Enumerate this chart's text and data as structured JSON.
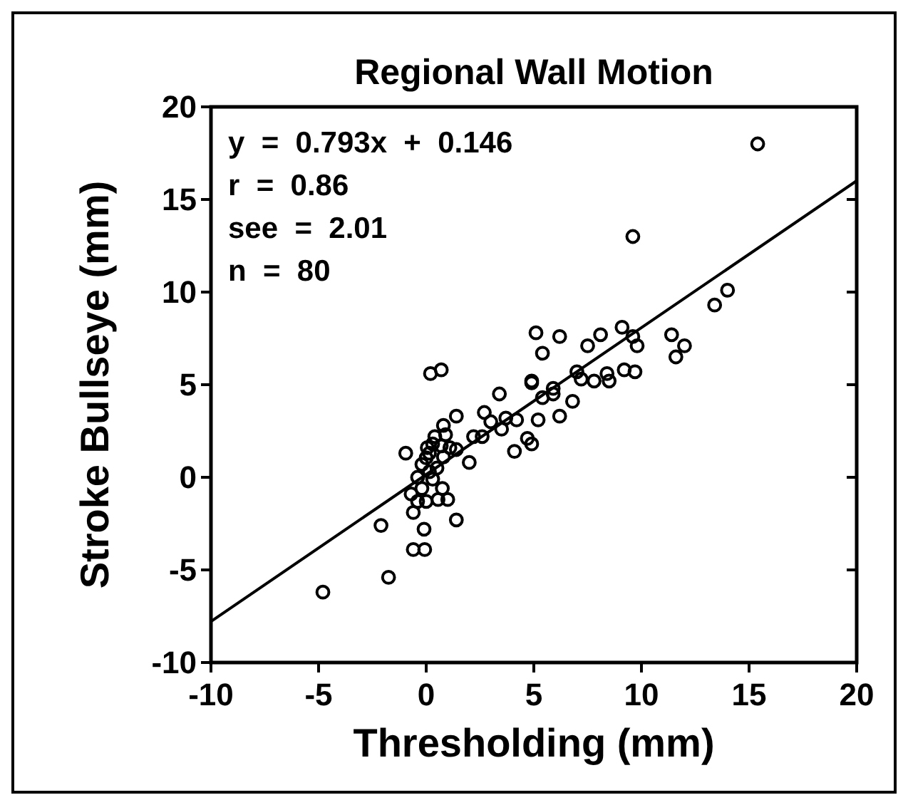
{
  "chart_data": {
    "type": "scatter",
    "title": "Regional Wall Motion",
    "xlabel": "Thresholding (mm)",
    "ylabel": "Stroke Bullseye (mm)",
    "xlim": [
      -10,
      20
    ],
    "xticks": [
      -10,
      -5,
      0,
      5,
      10,
      15,
      20
    ],
    "ylim": [
      -10,
      20
    ],
    "yticks": [
      -10,
      -5,
      0,
      5,
      10,
      15,
      20
    ],
    "grid": false,
    "marker": "circle",
    "annotations": [
      "y  =  0.793x  +  0.146",
      "r  =  0.86",
      "see  =  2.01",
      "n  =  80"
    ],
    "series": [
      {
        "color": "#000000",
        "x": [
          15.4,
          9.6,
          14.0,
          13.4,
          9.1,
          5.1,
          6.2,
          8.1,
          7.5,
          9.6,
          9.8,
          11.4,
          12.0,
          11.6,
          5.4,
          0.2,
          0.7,
          7.0,
          7.2,
          7.8,
          8.4,
          8.5,
          9.2,
          9.7,
          4.9,
          4.9,
          5.9,
          5.9,
          5.4,
          6.8,
          3.4,
          2.7,
          3.0,
          3.7,
          4.2,
          3.5,
          5.2,
          6.2,
          1.4,
          2.2,
          2.6,
          2.0,
          1.4,
          4.1,
          4.7,
          4.9,
          0.8,
          0.9,
          0.4,
          0.7,
          0.15,
          0.05,
          0.8,
          -0.2,
          0.15,
          0.3,
          -0.2,
          0.75,
          -0.95,
          -0.7,
          -0.4,
          0.0,
          0.55,
          1.0,
          -0.6,
          1.4,
          -0.1,
          -0.6,
          -0.07,
          -2.1,
          -1.75,
          -4.8,
          0.0,
          0.3,
          0.5,
          1.1,
          -0.4
        ],
        "values": [
          18.0,
          13.0,
          10.1,
          9.3,
          8.1,
          7.8,
          7.6,
          7.7,
          7.1,
          7.6,
          7.1,
          7.7,
          7.1,
          6.5,
          6.7,
          5.6,
          5.8,
          5.7,
          5.3,
          5.2,
          5.6,
          5.2,
          5.8,
          5.7,
          5.2,
          5.1,
          4.8,
          4.5,
          4.3,
          4.1,
          4.5,
          3.5,
          3.0,
          3.2,
          3.1,
          2.6,
          3.1,
          3.3,
          3.3,
          2.2,
          2.2,
          0.8,
          1.5,
          1.4,
          2.1,
          1.8,
          2.8,
          2.3,
          2.2,
          1.7,
          1.3,
          1.6,
          1.1,
          0.7,
          0.3,
          -0.1,
          -0.6,
          -0.6,
          1.3,
          -0.9,
          -1.3,
          -1.3,
          -1.2,
          -1.2,
          -1.9,
          -2.3,
          -2.8,
          -3.9,
          -3.9,
          -2.6,
          -5.4,
          -6.2,
          1.05,
          1.8,
          0.5,
          1.6,
          0.0
        ]
      },
      {
        "type": "line",
        "color": "#000000",
        "marker": "none",
        "line_style": "solid",
        "x": [
          -10,
          20
        ],
        "values": [
          -7.78,
          16.01
        ]
      }
    ]
  }
}
